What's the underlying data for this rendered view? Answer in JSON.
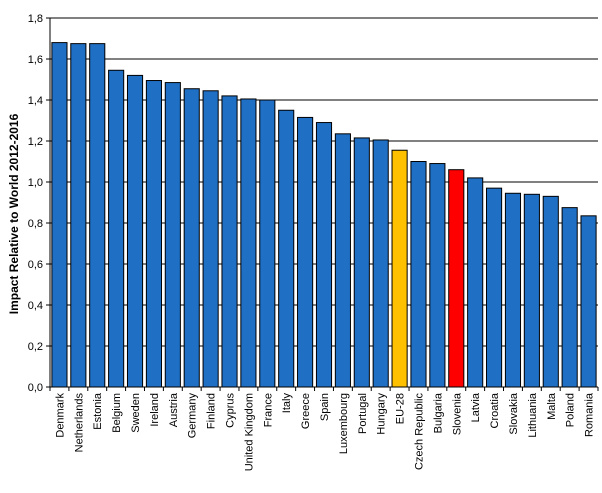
{
  "chart_data": {
    "type": "bar",
    "title": "",
    "xlabel": "",
    "ylabel": "Impact Relative to World 2012-2016",
    "ylim": [
      0,
      1.8
    ],
    "yticks": [
      "0,0",
      "0,2",
      "0,4",
      "0,6",
      "0,8",
      "1,0",
      "1,2",
      "1,4",
      "1,6",
      "1,8"
    ],
    "grid": true,
    "categories": [
      "Denmark",
      "Netherlands",
      "Estonia",
      "Belgium",
      "Sweden",
      "Ireland",
      "Austria",
      "Germany",
      "Finland",
      "Cyprus",
      "United Kingdom",
      "France",
      "Italy",
      "Greece",
      "Spain",
      "Luxembourg",
      "Portugal",
      "Hungary",
      "EU-28",
      "Czech Republic",
      "Bulgaria",
      "Slovenia",
      "Latvia",
      "Croatia",
      "Slovakia",
      "Lithuania",
      "Malta",
      "Poland",
      "Romania"
    ],
    "values": [
      1.68,
      1.675,
      1.675,
      1.545,
      1.52,
      1.495,
      1.485,
      1.455,
      1.445,
      1.42,
      1.405,
      1.4,
      1.35,
      1.315,
      1.29,
      1.235,
      1.215,
      1.205,
      1.155,
      1.1,
      1.09,
      1.06,
      1.02,
      0.97,
      0.945,
      0.94,
      0.93,
      0.875,
      0.835
    ],
    "colors": {
      "default": "#1f6fc5",
      "highlight": {
        "EU-28": "#ffc000",
        "Slovenia": "#ff0000"
      }
    }
  }
}
